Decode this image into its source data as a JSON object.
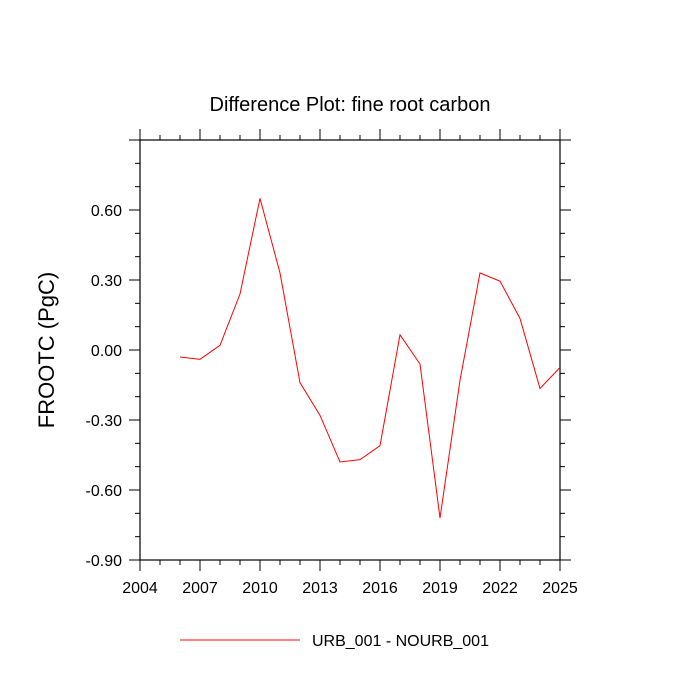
{
  "chart_data": {
    "type": "line",
    "title": "Difference Plot: fine root carbon",
    "xlabel": "",
    "ylabel": "FROOTC  (PgC)",
    "xlim": [
      2004,
      2025
    ],
    "ylim": [
      -0.9,
      0.9
    ],
    "x_ticks": [
      2004,
      2007,
      2010,
      2013,
      2016,
      2019,
      2022,
      2025
    ],
    "x_tick_labels": [
      "2004",
      "2007",
      "2010",
      "2013",
      "2016",
      "2019",
      "2022",
      "2025"
    ],
    "y_ticks": [
      -0.9,
      -0.6,
      -0.3,
      0.0,
      0.3,
      0.6
    ],
    "y_tick_labels": [
      "-0.90",
      "-0.60",
      "-0.30",
      "0.00",
      "0.30",
      "0.60"
    ],
    "grid": false,
    "legend_position": "bottom-center",
    "series": [
      {
        "name": "URB_001 - NOURB_001",
        "color": "#ff0000",
        "x": [
          2006,
          2007,
          2008,
          2009,
          2010,
          2011,
          2012,
          2013,
          2014,
          2015,
          2016,
          2017,
          2018,
          2019,
          2020,
          2021,
          2022,
          2023,
          2024,
          2025
        ],
        "y": [
          -0.03,
          -0.04,
          0.02,
          0.24,
          0.65,
          0.33,
          -0.14,
          -0.28,
          -0.48,
          -0.47,
          -0.41,
          0.065,
          -0.06,
          -0.72,
          -0.13,
          0.33,
          0.295,
          0.135,
          -0.165,
          -0.075
        ]
      }
    ]
  }
}
